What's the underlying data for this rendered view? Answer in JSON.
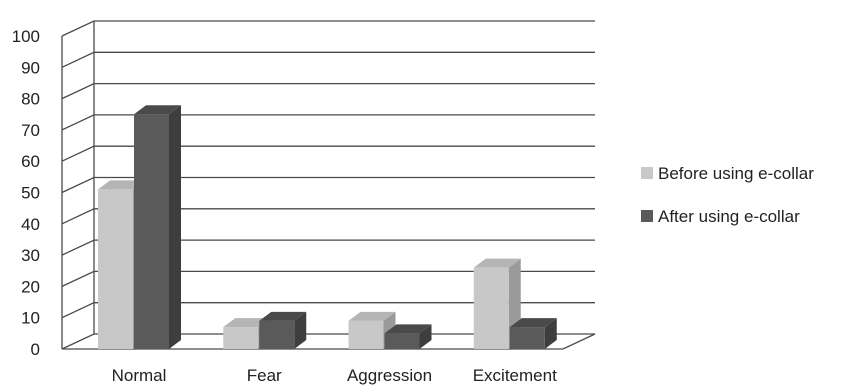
{
  "chart_data": {
    "type": "bar",
    "style": "3d-clustered-column",
    "categories": [
      "Normal",
      "Fear",
      "Aggression",
      "Excitement"
    ],
    "series": [
      {
        "name": "Before using e-collar",
        "values": [
          51,
          7,
          9,
          26
        ],
        "color": "#c8c8c8",
        "side_color": "#9a9a9a",
        "top_color": "#b5b5b5"
      },
      {
        "name": "After using e-collar",
        "values": [
          75,
          9,
          5,
          7
        ],
        "color": "#5a5a5a",
        "side_color": "#3e3e3e",
        "top_color": "#4a4a4a"
      }
    ],
    "y_ticks": [
      "0",
      "10",
      "20",
      "30",
      "40",
      "50",
      "60",
      "70",
      "80",
      "90",
      "100"
    ],
    "ylim": [
      0,
      100
    ],
    "grid": true,
    "legend_position": "right",
    "title": "",
    "xlabel": "",
    "ylabel": ""
  }
}
